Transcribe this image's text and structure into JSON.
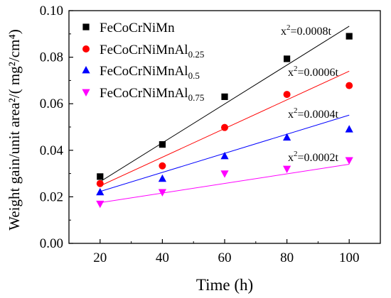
{
  "chart_data": {
    "type": "scatter",
    "xlabel": "Time (h)",
    "ylabel": "Weight gain/unit area²/( mg²/cm⁴)",
    "xlim": [
      10,
      110
    ],
    "ylim": [
      0.0,
      0.1
    ],
    "x_ticks": [
      "20",
      "40",
      "60",
      "80",
      "100"
    ],
    "y_ticks": [
      "0.00",
      "0.02",
      "0.04",
      "0.06",
      "0.08",
      "0.10"
    ],
    "grid": false,
    "legend_position": "top-left",
    "x": [
      20,
      40,
      60,
      80,
      100
    ],
    "series": [
      {
        "name": "FeCoCrNiMn",
        "name_base": "FeCoCrNiMn",
        "name_sub": "",
        "marker": "square",
        "color": "#000000",
        "values": [
          0.0287,
          0.0425,
          0.063,
          0.0793,
          0.089
        ],
        "fit_y": [
          0.0265,
          0.0933
        ],
        "annotation": "x²=0.0008t",
        "annotation_base": "x",
        "annotation_sup": "2",
        "annotation_rest": "=0.0008t"
      },
      {
        "name": "FeCoCrNiMnAl0.25",
        "name_base": "FeCoCrNiMnAl",
        "name_sub": "0.25",
        "marker": "circle",
        "color": "#ff0000",
        "values": [
          0.0257,
          0.0333,
          0.0498,
          0.064,
          0.0678
        ],
        "fit_y": [
          0.0247,
          0.074
        ],
        "annotation": "x²=0.0006t",
        "annotation_base": "x",
        "annotation_sup": "2",
        "annotation_rest": "=0.0006t"
      },
      {
        "name": "FeCoCrNiMnAl0.5",
        "name_base": "FeCoCrNiMnAl",
        "name_sub": "0.5",
        "marker": "triangle-up",
        "color": "#0000ff",
        "values": [
          0.022,
          0.0278,
          0.0375,
          0.0455,
          0.049
        ],
        "fit_y": [
          0.0223,
          0.0551
        ],
        "annotation": "x²=0.0004t",
        "annotation_base": "x",
        "annotation_sup": "2",
        "annotation_rest": "=0.0004t"
      },
      {
        "name": "FeCoCrNiMnAl0.75",
        "name_base": "FeCoCrNiMnAl",
        "name_sub": "0.75",
        "marker": "triangle-down",
        "color": "#ff00ff",
        "values": [
          0.017,
          0.022,
          0.03,
          0.032,
          0.0357
        ],
        "fit_y": [
          0.0175,
          0.034
        ],
        "annotation": "x²=0.0002t",
        "annotation_base": "x",
        "annotation_sup": "2",
        "annotation_rest": "=0.0002t"
      }
    ]
  }
}
